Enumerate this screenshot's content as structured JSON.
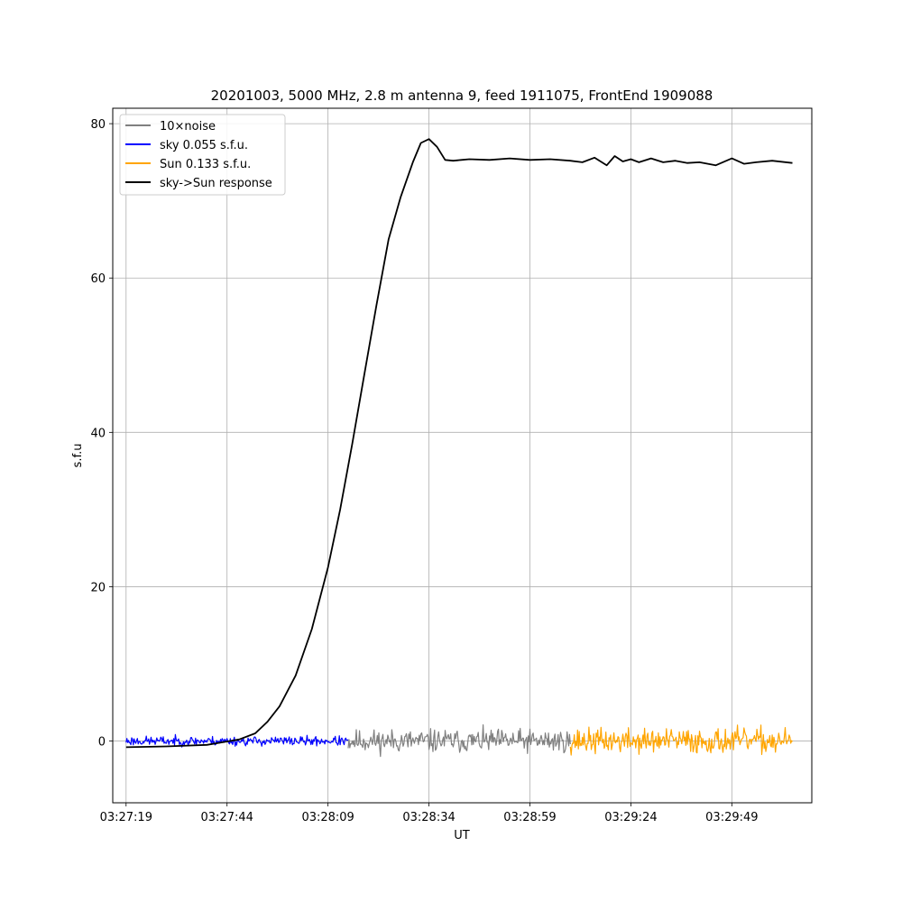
{
  "chart_data": {
    "type": "line",
    "title": "20201003, 5000 MHz, 2.8 m antenna 9, feed 1911075, FrontEnd 1909088",
    "xlabel": "UT",
    "ylabel": "s.f.u",
    "x_unit": "seconds",
    "xlim": [
      -3.3,
      169.8
    ],
    "ylim": [
      -8,
      82
    ],
    "x_ticks": [
      {
        "value": 0,
        "label": "03:27:19"
      },
      {
        "value": 25,
        "label": "03:27:44"
      },
      {
        "value": 50,
        "label": "03:28:09"
      },
      {
        "value": 75,
        "label": "03:28:34"
      },
      {
        "value": 100,
        "label": "03:28:59"
      },
      {
        "value": 125,
        "label": "03:29:24"
      },
      {
        "value": 150,
        "label": "03:29:49"
      }
    ],
    "y_ticks": [
      0,
      20,
      40,
      60,
      80
    ],
    "grid": true,
    "legend_position": "top-left",
    "series": [
      {
        "name": "10×noise",
        "color": "#808080",
        "kind": "noise",
        "x_range": [
          55,
          110
        ],
        "amplitude": 2.2,
        "seed": 11
      },
      {
        "name": "sky 0.055 s.f.u.",
        "color": "#0000ff",
        "kind": "noise",
        "x_range": [
          0,
          55
        ],
        "amplitude": 0.9,
        "seed": 23
      },
      {
        "name": "Sun 0.133 s.f.u.",
        "color": "#ffa500",
        "kind": "noise",
        "x_range": [
          110,
          165
        ],
        "amplitude": 2.4,
        "seed": 37
      },
      {
        "name": "sky->Sun response",
        "color": "#000000",
        "kind": "line",
        "x": [
          0,
          10,
          20,
          28,
          32,
          35,
          38,
          42,
          46,
          50,
          53,
          56,
          59,
          62,
          65,
          68,
          71,
          73,
          75,
          77,
          79,
          81,
          83,
          85,
          90,
          95,
          100,
          105,
          110,
          113,
          116,
          119,
          121,
          123,
          125,
          127,
          130,
          133,
          136,
          139,
          142,
          146,
          150,
          153,
          156,
          160,
          165
        ],
        "y": [
          -0.8,
          -0.7,
          -0.5,
          0.2,
          1.0,
          2.5,
          4.5,
          8.5,
          14.5,
          22.5,
          30,
          38.5,
          47.5,
          56.5,
          65,
          70.5,
          75,
          77.5,
          78,
          77,
          75.3,
          75.2,
          75.3,
          75.4,
          75.3,
          75.5,
          75.3,
          75.4,
          75.2,
          75.0,
          75.6,
          74.6,
          75.8,
          75.1,
          75.4,
          75.0,
          75.5,
          75.0,
          75.2,
          74.9,
          75.0,
          74.6,
          75.5,
          74.8,
          75.0,
          75.2,
          74.9
        ]
      }
    ]
  }
}
